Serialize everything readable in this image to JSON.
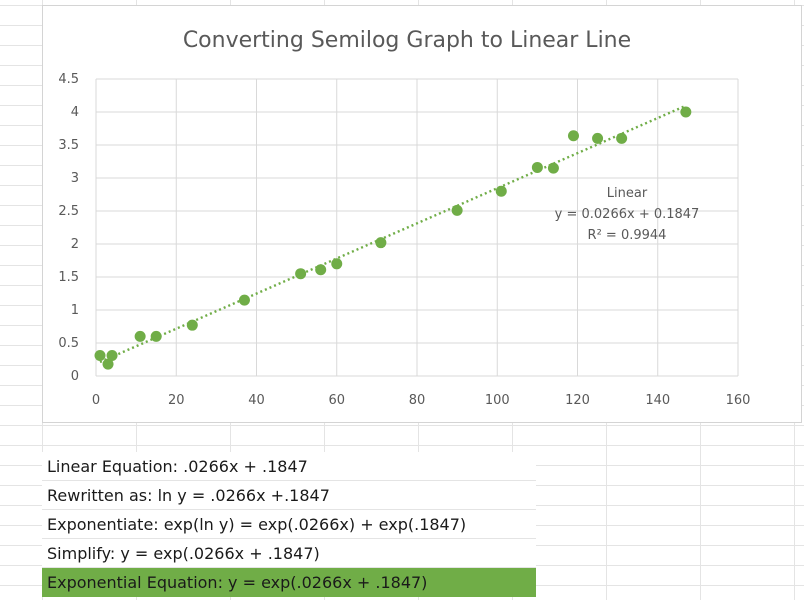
{
  "chart_data": {
    "type": "scatter",
    "title": "Converting Semilog Graph to Linear Line",
    "xlim": [
      0,
      160
    ],
    "ylim": [
      0,
      4.5
    ],
    "x_ticks": [
      "0",
      "20",
      "40",
      "60",
      "80",
      "100",
      "120",
      "140",
      "160"
    ],
    "y_ticks": [
      "0",
      "0.5",
      "1",
      "1.5",
      "2",
      "2.5",
      "3",
      "3.5",
      "4",
      "4.5"
    ],
    "grid": true,
    "marker_color": "#70ad47",
    "series": [
      {
        "points": [
          [
            1,
            0.31
          ],
          [
            3,
            0.18
          ],
          [
            4,
            0.31
          ],
          [
            11,
            0.6
          ],
          [
            15,
            0.6
          ],
          [
            24,
            0.77
          ],
          [
            37,
            1.15
          ],
          [
            51,
            1.55
          ],
          [
            56,
            1.61
          ],
          [
            60,
            1.7
          ],
          [
            71,
            2.02
          ],
          [
            90,
            2.51
          ],
          [
            101,
            2.8
          ],
          [
            110,
            3.16
          ],
          [
            114,
            3.15
          ],
          [
            119,
            3.64
          ],
          [
            125,
            3.6
          ],
          [
            131,
            3.6
          ],
          [
            147,
            4.0
          ]
        ]
      }
    ],
    "trendline": {
      "slope": 0.0266,
      "intercept": 0.1847,
      "x_range": [
        1,
        147
      ],
      "style": "dotted",
      "label_lines": [
        "Linear",
        "y = 0.0266x + 0.1847",
        "R² = 0.9944"
      ]
    }
  },
  "notes": [
    {
      "text": "Linear Equation: .0266x + .1847",
      "highlight": false
    },
    {
      "text": "Rewritten as: ln y = .0266x +.1847",
      "highlight": false
    },
    {
      "text": "Exponentiate: exp(ln y) = exp(.0266x) + exp(.1847)",
      "highlight": false
    },
    {
      "text": "Simplify: y = exp(.0266x + .1847)",
      "highlight": false
    },
    {
      "text": "Exponential Equation: y = exp(.0266x + .1847)",
      "highlight": true
    }
  ],
  "colors": {
    "highlight": "#70ad47",
    "text": "#1a1a1a",
    "axis_text": "#595959"
  }
}
